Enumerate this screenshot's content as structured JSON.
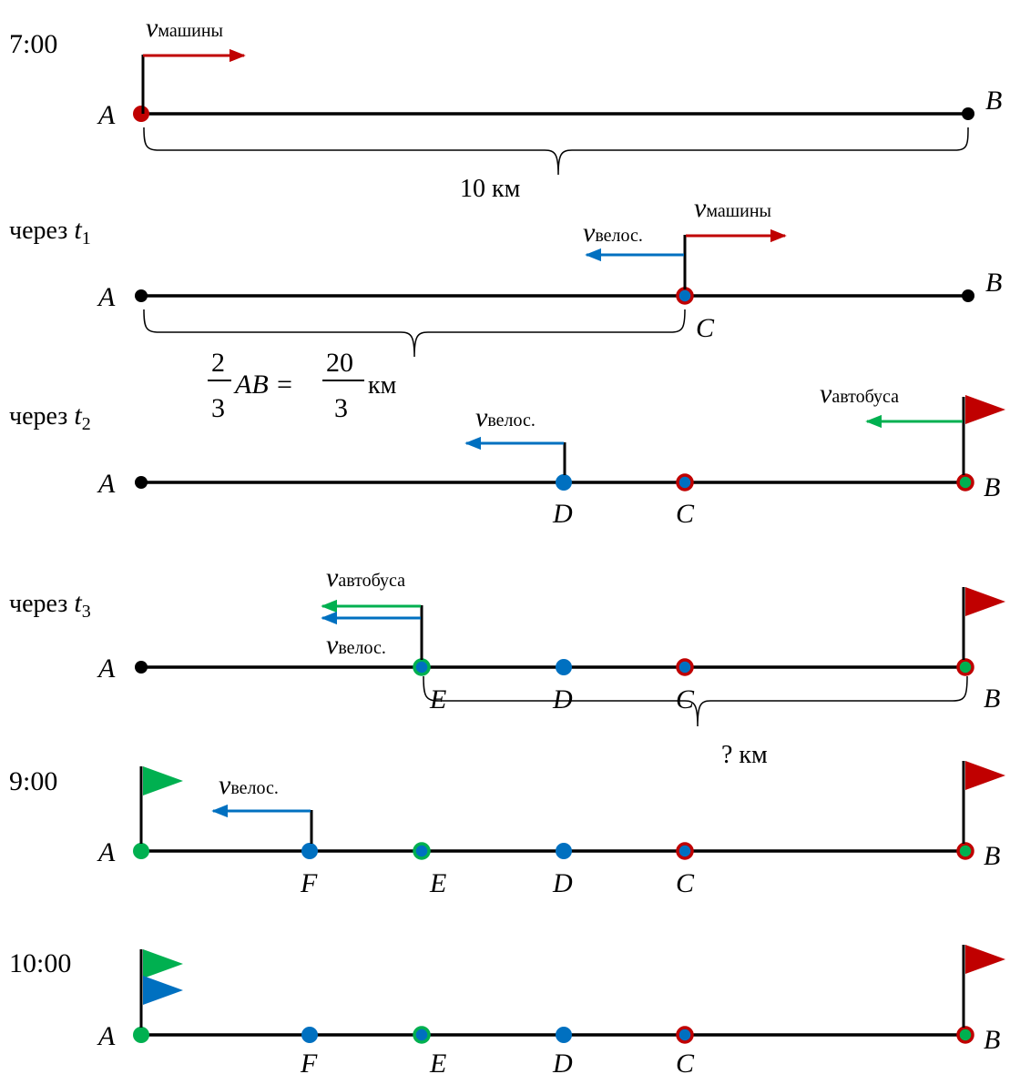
{
  "colors": {
    "line": "#000000",
    "car": "#c00000",
    "bike": "#0070c0",
    "bus": "#00b050",
    "point": "#000000"
  },
  "rows": [
    {
      "time_label": "7:00",
      "time_var": "",
      "time_sub": ""
    },
    {
      "time_label": "через ",
      "time_var": "t",
      "time_sub": "1"
    },
    {
      "time_label": "через ",
      "time_var": "t",
      "time_sub": "2"
    },
    {
      "time_label": "через ",
      "time_var": "t",
      "time_sub": "3"
    },
    {
      "time_label": "9:00",
      "time_var": "",
      "time_sub": ""
    },
    {
      "time_label": "10:00",
      "time_var": "",
      "time_sub": ""
    }
  ],
  "points": {
    "A": "A",
    "B": "B",
    "C": "C",
    "D": "D",
    "E": "E",
    "F": "F"
  },
  "velocity": {
    "symbol": "v",
    "car_sub": "машины",
    "bike_sub": "велос.",
    "bus_sub": "автобуса"
  },
  "measures": {
    "ab_distance": "10 км",
    "ac_frac_num": "2",
    "ac_frac_den": "3",
    "ac_mid": "AB =",
    "ac_val_num": "20",
    "ac_val_den": "3",
    "ac_unit": "км",
    "unknown": "? км"
  }
}
